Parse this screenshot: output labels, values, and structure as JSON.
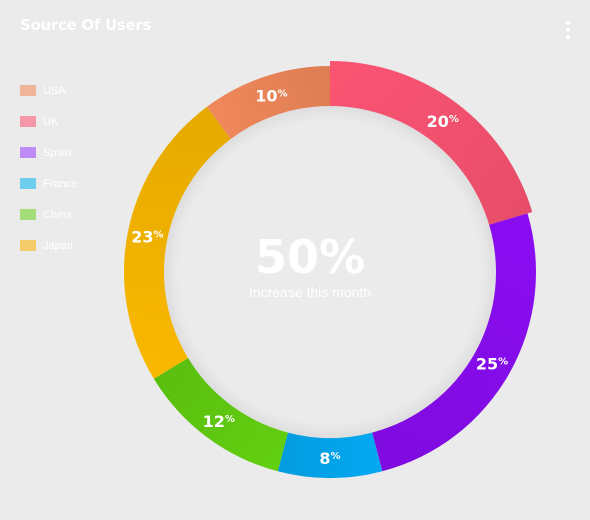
{
  "card": {
    "title": "Source Of Users"
  },
  "center": {
    "value": "50%",
    "caption": "Increase this month"
  },
  "legend": [
    {
      "label": "USA",
      "color": "#f0885a"
    },
    {
      "label": "UK",
      "color": "#fb5473"
    },
    {
      "label": "Spain",
      "color": "#9a3cfc"
    },
    {
      "label": "France",
      "color": "#0ab4f4"
    },
    {
      "label": "China",
      "color": "#6cd41a"
    },
    {
      "label": "Japan",
      "color": "#fbb400"
    }
  ],
  "chart_data": {
    "type": "pie",
    "variant": "donut",
    "title": "Source Of Users",
    "categories": [
      "USA",
      "UK",
      "Spain",
      "France",
      "China",
      "Japan"
    ],
    "values": [
      10,
      20,
      25,
      8,
      12,
      23
    ],
    "unit": "%",
    "colors": [
      "#f0885a",
      "#fb5473",
      "#8a0cf2",
      "#04a9f2",
      "#62cf10",
      "#f9b800"
    ],
    "legend_position": "top-left",
    "center_value": "50%",
    "center_caption": "Increase this month"
  },
  "icons": {
    "menu": "more-vertical-icon"
  }
}
